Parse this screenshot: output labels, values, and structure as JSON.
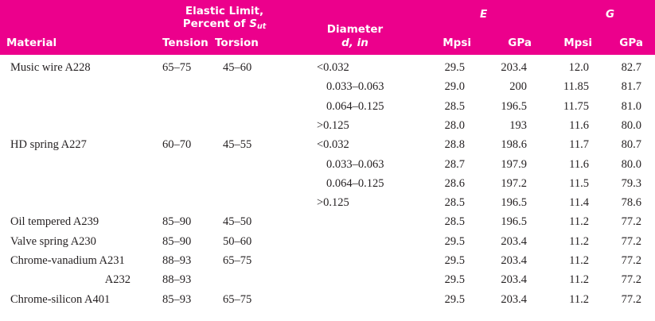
{
  "header": {
    "material": "Material",
    "elastic_line1": "Elastic Limit,",
    "elastic_line2_prefix": "Percent of ",
    "elastic_line2_symbol": "S",
    "elastic_line2_sub": "ut",
    "tension": "Tension",
    "torsion": "Torsion",
    "diameter_line1": "Diameter",
    "diameter_line2": "d, in",
    "E": "E",
    "G": "G",
    "mpsi": "Mpsi",
    "gpa": "GPa"
  },
  "rows": [
    {
      "material": "Music wire A228",
      "tension": "65–75",
      "torsion": "45–60",
      "diameter": "<0.032",
      "e_mpsi": "29.5",
      "e_gpa": "203.4",
      "g_mpsi": "12.0",
      "g_gpa": "82.7"
    },
    {
      "material": "",
      "tension": "",
      "torsion": "",
      "diameter": "0.033–0.063",
      "e_mpsi": "29.0",
      "e_gpa": "200",
      "g_mpsi": "11.85",
      "g_gpa": "81.7"
    },
    {
      "material": "",
      "tension": "",
      "torsion": "",
      "diameter": "0.064–0.125",
      "e_mpsi": "28.5",
      "e_gpa": "196.5",
      "g_mpsi": "11.75",
      "g_gpa": "81.0"
    },
    {
      "material": "",
      "tension": "",
      "torsion": "",
      "diameter": ">0.125",
      "e_mpsi": "28.0",
      "e_gpa": "193",
      "g_mpsi": "11.6",
      "g_gpa": "80.0"
    },
    {
      "material": "HD spring A227",
      "tension": "60–70",
      "torsion": "45–55",
      "diameter": "<0.032",
      "e_mpsi": "28.8",
      "e_gpa": "198.6",
      "g_mpsi": "11.7",
      "g_gpa": "80.7"
    },
    {
      "material": "",
      "tension": "",
      "torsion": "",
      "diameter": "0.033–0.063",
      "e_mpsi": "28.7",
      "e_gpa": "197.9",
      "g_mpsi": "11.6",
      "g_gpa": "80.0"
    },
    {
      "material": "",
      "tension": "",
      "torsion": "",
      "diameter": "0.064–0.125",
      "e_mpsi": "28.6",
      "e_gpa": "197.2",
      "g_mpsi": "11.5",
      "g_gpa": "79.3"
    },
    {
      "material": "",
      "tension": "",
      "torsion": "",
      "diameter": ">0.125",
      "e_mpsi": "28.5",
      "e_gpa": "196.5",
      "g_mpsi": "11.4",
      "g_gpa": "78.6"
    },
    {
      "material": "Oil tempered A239",
      "tension": "85–90",
      "torsion": "45–50",
      "diameter": "",
      "e_mpsi": "28.5",
      "e_gpa": "196.5",
      "g_mpsi": "11.2",
      "g_gpa": "77.2"
    },
    {
      "material": "Valve spring A230",
      "tension": "85–90",
      "torsion": "50–60",
      "diameter": "",
      "e_mpsi": "29.5",
      "e_gpa": "203.4",
      "g_mpsi": "11.2",
      "g_gpa": "77.2"
    },
    {
      "material": "Chrome-vanadium A231",
      "tension": "88–93",
      "torsion": "65–75",
      "diameter": "",
      "e_mpsi": "29.5",
      "e_gpa": "203.4",
      "g_mpsi": "11.2",
      "g_gpa": "77.2"
    },
    {
      "material": "A232",
      "tension": "88–93",
      "torsion": "",
      "diameter": "",
      "e_mpsi": "29.5",
      "e_gpa": "203.4",
      "g_mpsi": "11.2",
      "g_gpa": "77.2",
      "material_right_aligned": true
    },
    {
      "material": "Chrome-silicon A401",
      "tension": "85–93",
      "torsion": "65–75",
      "diameter": "",
      "e_mpsi": "29.5",
      "e_gpa": "203.4",
      "g_mpsi": "11.2",
      "g_gpa": "77.2"
    }
  ]
}
